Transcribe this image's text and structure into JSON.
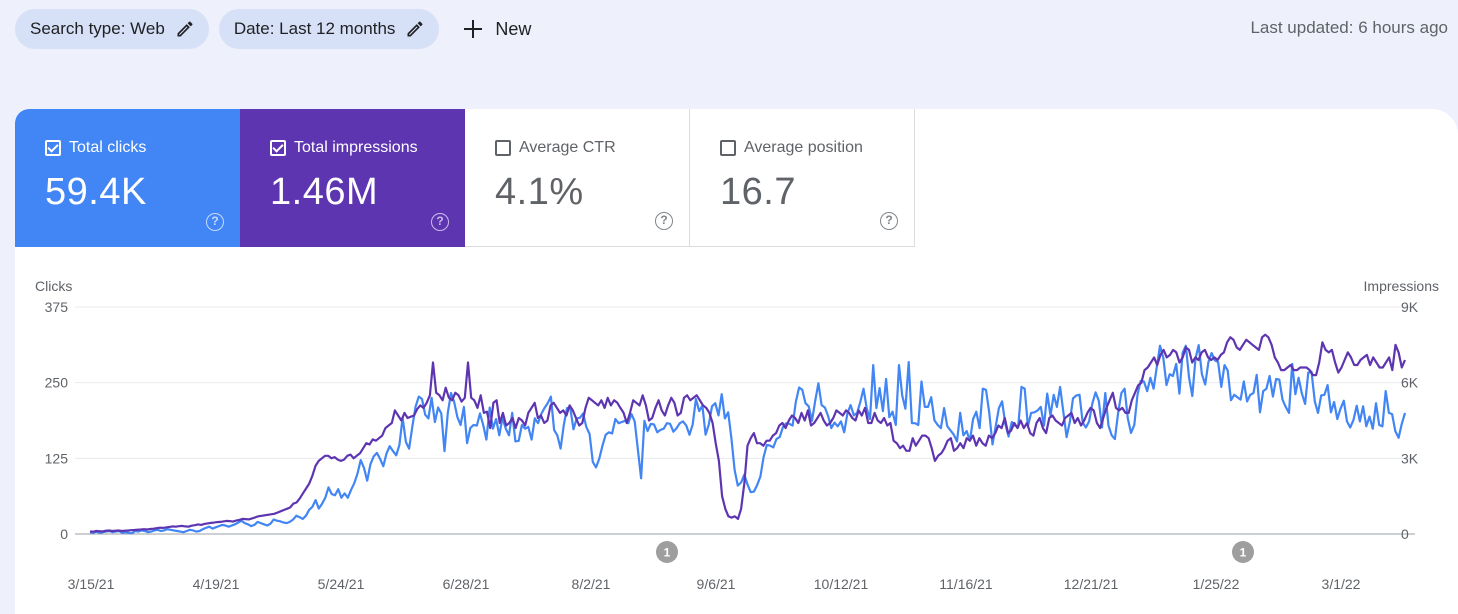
{
  "filters": {
    "search_type": "Search type: Web",
    "date": "Date: Last 12 months",
    "new_label": "New"
  },
  "last_updated": "Last updated: 6 hours ago",
  "metrics": [
    {
      "label": "Total clicks",
      "value": "59.4K",
      "checked": true,
      "color": "#4285f4"
    },
    {
      "label": "Total impressions",
      "value": "1.46M",
      "checked": true,
      "color": "#5e35b1"
    },
    {
      "label": "Average CTR",
      "value": "4.1%",
      "checked": false
    },
    {
      "label": "Average position",
      "value": "16.7",
      "checked": false
    }
  ],
  "chart_data": {
    "type": "line",
    "left_axis": {
      "label": "Clicks",
      "ticks": [
        "375",
        "250",
        "125",
        "0"
      ],
      "ylim": [
        0,
        375
      ]
    },
    "right_axis": {
      "label": "Impressions",
      "ticks": [
        "9K",
        "6K",
        "3K",
        "0"
      ],
      "ylim": [
        0,
        9000
      ]
    },
    "x_tick_labels": [
      "3/15/21",
      "4/19/21",
      "5/24/21",
      "6/28/21",
      "8/2/21",
      "9/6/21",
      "10/12/21",
      "11/16/21",
      "12/21/21",
      "1/25/22",
      "3/1/22"
    ],
    "annotations": [
      {
        "x": "8/30/21",
        "label": "1"
      },
      {
        "x": "2/8/22",
        "label": "1"
      }
    ],
    "grid": true,
    "series": [
      {
        "name": "Clicks",
        "axis": "left",
        "color": "#4285f4",
        "values": [
          3,
          2,
          4,
          2,
          3,
          4,
          5,
          3,
          4,
          5,
          2,
          3,
          2,
          1,
          5,
          4,
          6,
          5,
          3,
          4,
          6,
          7,
          5,
          6,
          8,
          7,
          6,
          5,
          4,
          3,
          5,
          7,
          6,
          4,
          5,
          8,
          10,
          12,
          9,
          11,
          13,
          15,
          14,
          12,
          14,
          16,
          19,
          22,
          18,
          16,
          13,
          15,
          20,
          18,
          16,
          14,
          17,
          24,
          22,
          21,
          19,
          18,
          20,
          24,
          30,
          28,
          25,
          30,
          40,
          45,
          56,
          42,
          50,
          60,
          77,
          66,
          64,
          74,
          60,
          67,
          60,
          73,
          84,
          100,
          122,
          109,
          88,
          115,
          128,
          134,
          124,
          112,
          133,
          145,
          137,
          130,
          147,
          192,
          152,
          141,
          177,
          210,
          227,
          223,
          197,
          191,
          225,
          185,
          209,
          199,
          137,
          200,
          233,
          218,
          193,
          180,
          210,
          150,
          175,
          180,
          179,
          199,
          180,
          156,
          209,
          174,
          190,
          163,
          192,
          174,
          163,
          200,
          153,
          154,
          180,
          174,
          177,
          156,
          191,
          183,
          198,
          208,
          216,
          227,
          172,
          163,
          141,
          180,
          208,
          209,
          173,
          191,
          192,
          199,
          177,
          165,
          119,
          110,
          124,
          146,
          164,
          168,
          166,
          190,
          183,
          185,
          187,
          183,
          198,
          186,
          139,
          92,
          187,
          170,
          182,
          181,
          168,
          172,
          174,
          183,
          182,
          169,
          175,
          183,
          186,
          179,
          164,
          181,
          223,
          203,
          212,
          164,
          181,
          211,
          216,
          196,
          231,
          191,
          201,
          158,
          106,
          80,
          85,
          98,
          82,
          69,
          70,
          81,
          95,
          127,
          147,
          146,
          143,
          157,
          160,
          177,
          183,
          182,
          179,
          218,
          242,
          238,
          216,
          211,
          187,
          220,
          249,
          213,
          209,
          195,
          175,
          184,
          178,
          186,
          168,
          199,
          213,
          196,
          200,
          218,
          240,
          207,
          190,
          279,
          208,
          241,
          203,
          256,
          193,
          202,
          180,
          279,
          229,
          207,
          284,
          183,
          183,
          180,
          252,
          210,
          210,
          226,
          188,
          180,
          175,
          208,
          178,
          171,
          164,
          153,
          200,
          163,
          170,
          154,
          190,
          202,
          175,
          240,
          238,
          201,
          148,
          178,
          208,
          219,
          182,
          161,
          185,
          179,
          177,
          243,
          240,
          178,
          200,
          201,
          204,
          210,
          179,
          232,
          196,
          230,
          210,
          243,
          201,
          160,
          185,
          224,
          229,
          230,
          184,
          176,
          186,
          216,
          234,
          220,
          176,
          233,
          179,
          163,
          157,
          200,
          233,
          240,
          191,
          167,
          180,
          230,
          253,
          252,
          236,
          258,
          240,
          276,
          311,
          291,
          246,
          264,
          261,
          281,
          232,
          299,
          311,
          258,
          228,
          290,
          312,
          264,
          247,
          284,
          299,
          287,
          284,
          243,
          279,
          270,
          221,
          230,
          226,
          222,
          252,
          219,
          230,
          233,
          263,
          201,
          236,
          240,
          261,
          227,
          256,
          255,
          222,
          210,
          200,
          281,
          231,
          258,
          232,
          215,
          267,
          268,
          219,
          200,
          229,
          230,
          246,
          201,
          218,
          190,
          207,
          220,
          186,
          176,
          188,
          212,
          186,
          211,
          178,
          194,
          174,
          216,
          180,
          178,
          236,
          200,
          198,
          170,
          159,
          182,
          200
        ]
      },
      {
        "name": "Impressions",
        "axis": "right",
        "color": "#5e35b1",
        "values": [
          100,
          90,
          120,
          110,
          100,
          130,
          140,
          120,
          130,
          140,
          120,
          130,
          140,
          150,
          160,
          170,
          180,
          190,
          180,
          200,
          210,
          230,
          250,
          240,
          260,
          280,
          300,
          290,
          310,
          320,
          300,
          290,
          330,
          350,
          380,
          360,
          400,
          420,
          440,
          450,
          470,
          480,
          500,
          520,
          510,
          490,
          530,
          560,
          600,
          590,
          580,
          620,
          660,
          700,
          720,
          740,
          760,
          780,
          800,
          850,
          900,
          950,
          1000,
          1050,
          1200,
          1250,
          1400,
          1600,
          1800,
          2000,
          2300,
          2700,
          2900,
          3000,
          3100,
          3100,
          3000,
          3050,
          2950,
          2900,
          2950,
          3100,
          3150,
          3000,
          3100,
          3200,
          3400,
          3600,
          3550,
          3750,
          3700,
          3800,
          3900,
          4200,
          4300,
          4400,
          4900,
          4700,
          4500,
          4800,
          4600,
          4650,
          4700,
          4950,
          5100,
          5000,
          5200,
          5500,
          6800,
          5600,
          5500,
          5300,
          5800,
          5400,
          5300,
          5600,
          5500,
          5250,
          5400,
          6800,
          5400,
          5300,
          5000,
          5500,
          4800,
          4850,
          4200,
          5200,
          5300,
          4400,
          4800,
          4300,
          4400,
          4600,
          4200,
          4600,
          4500,
          4300,
          4800,
          5000,
          5200,
          4600,
          4700,
          4400,
          4500,
          5100,
          5200,
          5000,
          4800,
          4900,
          4700,
          5100,
          4900,
          4600,
          4300,
          4400,
          5000,
          5400,
          5300,
          5200,
          5100,
          5300,
          5000,
          5400,
          5100,
          5300,
          5200,
          5000,
          4800,
          4400,
          4800,
          5300,
          5200,
          5100,
          5500,
          5100,
          4500,
          4600,
          5000,
          5300,
          4900,
          4700,
          5100,
          5400,
          5200,
          4700,
          4800,
          5400,
          5500,
          5300,
          5400,
          5500,
          5300,
          5100,
          5000,
          4800,
          4400,
          3600,
          2900,
          1500,
          1000,
          700,
          650,
          700,
          600,
          1000,
          2000,
          3500,
          3800,
          4000,
          3600,
          3600,
          3500,
          3700,
          3700,
          3900,
          4000,
          4300,
          4400,
          4200,
          4500,
          4700,
          4600,
          4400,
          4800,
          4500,
          4900,
          4300,
          4400,
          4600,
          4800,
          4500,
          4300,
          4400,
          4600,
          4900,
          4800,
          4700,
          4900,
          4800,
          4600,
          4500,
          4900,
          4700,
          5000,
          4400,
          4400,
          4800,
          4500,
          4400,
          4600,
          4300,
          4400,
          3700,
          3600,
          3400,
          3500,
          3300,
          3300,
          3800,
          3500,
          3700,
          3900,
          3900,
          3800,
          3400,
          2900,
          3100,
          3200,
          3400,
          3700,
          3800,
          3300,
          3400,
          3600,
          3400,
          3800,
          3700,
          3900,
          3500,
          3800,
          3600,
          3500,
          3900,
          3800,
          4000,
          4300,
          4200,
          4600,
          4000,
          4100,
          4400,
          4200,
          4500,
          4200,
          4400,
          4000,
          3900,
          4400,
          4600,
          4200,
          4000,
          4600,
          4700,
          4500,
          4400,
          4300,
          4600,
          4700,
          4800,
          4400,
          4600,
          4300,
          4500,
          4800,
          5000,
          4900,
          4400,
          4200,
          4600,
          5000,
          5300,
          5600,
          5000,
          4900,
          5000,
          4800,
          4800,
          5300,
          5600,
          5900,
          6000,
          6500,
          6600,
          6800,
          7000,
          6700,
          7100,
          7300,
          7000,
          7100,
          7300,
          7200,
          6800,
          7000,
          7400,
          7300,
          6800,
          7000,
          6900,
          7200,
          7300,
          7000,
          6900,
          7000,
          6900,
          7100,
          7200,
          7600,
          7800,
          7700,
          7400,
          7300,
          7500,
          7700,
          7600,
          7500,
          7400,
          7300,
          7800,
          7900,
          7800,
          7500,
          7000,
          6800,
          6500,
          6500,
          6600,
          6700,
          6500,
          6500,
          6600,
          6600,
          6600,
          6500,
          6300,
          6300,
          6800,
          7600,
          7300,
          7200,
          7300,
          6800,
          6400,
          6600,
          6900,
          7200,
          7000,
          6700,
          6700,
          6900,
          7000,
          7100,
          6700,
          7000,
          6800,
          6600,
          6600,
          6800,
          7000,
          6500,
          7500,
          7200,
          6600,
          6900
        ]
      }
    ]
  }
}
